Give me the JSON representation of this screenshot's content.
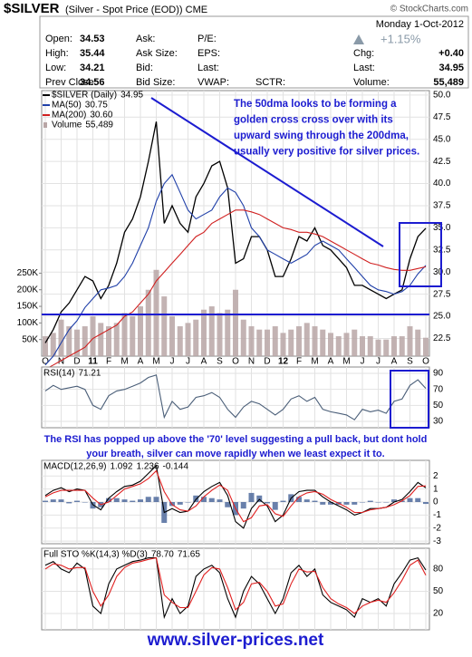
{
  "header": {
    "title": "$SILVER",
    "subtitle": "(Silver - Spot Price (EOD)) CME",
    "credit": "© StockCharts.com"
  },
  "quote": {
    "rows": [
      [
        {
          "label": "Open:",
          "value": "34.53"
        },
        {
          "label": "Ask:"
        },
        {
          "label": "P/E:"
        }
      ],
      [
        {
          "label": "High:",
          "value": "35.44"
        },
        {
          "label": "Ask Size:"
        },
        {
          "label": "EPS:"
        }
      ],
      [
        {
          "label": "Low:",
          "value": "34.21"
        },
        {
          "label": "Bid:"
        },
        {
          "label": "Last:"
        }
      ],
      [
        {
          "label": "Prev Close:",
          "value": "34.56"
        },
        {
          "label": "Bid Size:"
        },
        {
          "label": "VWAP:"
        },
        {
          "label": "SCTR:"
        }
      ]
    ],
    "date": "Monday  1-Oct-2012",
    "change_pct": "+1.15%",
    "right_rows": [
      {
        "label": "Chg:",
        "value": "+0.40"
      },
      {
        "label": "Last:",
        "value": "34.95"
      },
      {
        "label": "Volume:",
        "value": "55,489"
      }
    ]
  },
  "annotations": {
    "price_note": [
      "The 50dma looks to be forming a",
      "golden cross cross over with its",
      "upward swing through the 200dma,",
      "usually very positive for silver prices."
    ],
    "rsi_note": [
      "The RSI has popped up above the '70' level suggesting a pull back, but dont hold",
      "your breath, silver can move rapidly when we least expect it to."
    ]
  },
  "footer": "www.silver-prices.net",
  "chart_data": [
    {
      "type": "line",
      "categories": [
        "O",
        null,
        "N",
        null,
        "D",
        null,
        "11",
        null,
        "F",
        null,
        "M",
        null,
        "A",
        null,
        "M",
        null,
        "J",
        null,
        "J",
        null,
        "A",
        null,
        "S",
        null,
        "O",
        null,
        "N",
        null,
        "D",
        null,
        "12",
        null,
        "F",
        null,
        "M",
        null,
        "A",
        null,
        "M",
        null,
        "J",
        null,
        "J",
        null,
        "A",
        null,
        "S",
        null,
        "O"
      ],
      "ylim": [
        20.5,
        50.5
      ],
      "yticks": [
        22.5,
        {
          "value": 25,
          "label": "25.0"
        },
        27.5,
        {
          "value": 30,
          "label": "30.0"
        },
        32.5,
        {
          "value": 35,
          "label": "35.0"
        },
        37.5,
        {
          "value": 40,
          "label": "40.0"
        },
        42.5,
        {
          "value": 45,
          "label": "45.0"
        },
        47.5,
        {
          "value": 50,
          "label": "50.0"
        }
      ],
      "y2lim": [
        0,
        800000
      ],
      "y2ticks": [
        {
          "value": 50000,
          "label": "50K"
        },
        {
          "value": 100000,
          "label": "100K"
        },
        {
          "value": 150000,
          "label": "150K"
        },
        {
          "value": 200000,
          "label": "200K"
        },
        {
          "value": 250000,
          "label": "250K"
        }
      ],
      "grid": true,
      "series": [
        {
          "name": "$SILVER (Daily)",
          "color": "#000000",
          "values": [
            22.0,
            23.5,
            25.5,
            26.5,
            28.0,
            29.5,
            29.0,
            27.0,
            28.5,
            31.0,
            34.5,
            36.0,
            38.5,
            42.5,
            47.0,
            35.5,
            37.5,
            35.5,
            34.5,
            38.5,
            40.0,
            42.0,
            42.5,
            39.5,
            31.0,
            31.5,
            34.0,
            34.0,
            32.5,
            29.5,
            29.5,
            31.5,
            34.0,
            33.5,
            35.0,
            33.0,
            32.5,
            31.5,
            30.5,
            28.5,
            28.5,
            28.0,
            27.5,
            27.0,
            27.5,
            28.0,
            31.5,
            34.0,
            34.95
          ]
        },
        {
          "name": "MA(50)",
          "color": "#1f3fa8",
          "values": [
            19.5,
            20.5,
            22,
            23.5,
            24.5,
            26,
            27,
            28,
            28.2,
            28.5,
            29.5,
            31,
            33,
            35,
            38,
            40,
            41,
            39,
            37,
            36,
            36.5,
            37,
            38.5,
            39.5,
            39,
            37.5,
            35,
            34,
            32.5,
            32,
            31.5,
            31,
            31.5,
            32,
            33,
            33.5,
            33,
            32.5,
            31.5,
            30.5,
            29.5,
            28.5,
            28,
            27.8,
            27.5,
            27.8,
            28.5,
            29.8,
            30.75
          ]
        },
        {
          "name": "MA(200)",
          "color": "#d02020",
          "last_label": "30.60",
          "values": [
            19,
            19.5,
            20,
            20.5,
            21,
            21.5,
            22.5,
            23,
            23.5,
            24,
            25,
            25.5,
            26.5,
            27.5,
            29,
            30,
            31,
            32,
            33,
            34,
            34.5,
            35.5,
            36,
            36.5,
            37,
            37,
            36.8,
            36.5,
            36,
            35.5,
            35,
            34.8,
            34.5,
            34.5,
            34.3,
            34,
            33.5,
            33,
            32.5,
            32,
            31.5,
            31,
            30.8,
            30.5,
            30.3,
            30.2,
            30.2,
            30.4,
            30.6
          ]
        },
        {
          "name": "Volume",
          "color": "#b9a6a6",
          "axis": "y2",
          "mark": "bar",
          "last_label": "55,489",
          "values": [
            60000,
            70000,
            110000,
            90000,
            80000,
            90000,
            120000,
            100000,
            90000,
            100000,
            130000,
            120000,
            150000,
            200000,
            260000,
            180000,
            120000,
            90000,
            100000,
            110000,
            140000,
            150000,
            130000,
            140000,
            200000,
            110000,
            90000,
            80000,
            80000,
            90000,
            70000,
            80000,
            90000,
            100000,
            90000,
            80000,
            70000,
            60000,
            70000,
            80000,
            60000,
            60000,
            50000,
            50000,
            60000,
            60000,
            90000,
            80000,
            55489
          ]
        }
      ]
    },
    {
      "type": "line",
      "title": "RSI(14)",
      "ylim": [
        22,
        98
      ],
      "yticks": [
        30,
        50,
        70,
        90
      ],
      "grid": true,
      "series": [
        {
          "color": "#4a5e78",
          "values": [
            68,
            75,
            70,
            72,
            74,
            70,
            50,
            45,
            62,
            68,
            70,
            74,
            78,
            85,
            88,
            35,
            55,
            45,
            48,
            60,
            62,
            66,
            60,
            45,
            35,
            48,
            55,
            52,
            45,
            38,
            45,
            58,
            62,
            55,
            60,
            45,
            42,
            40,
            38,
            32,
            45,
            42,
            44,
            40,
            55,
            58,
            75,
            82,
            71.21
          ]
        }
      ]
    },
    {
      "type": "line",
      "title": "MACD(12,26,9)",
      "ylim": [
        -3.2,
        3.2
      ],
      "yticks": [
        2,
        1,
        0,
        -1,
        -2,
        -3
      ],
      "grid": true,
      "series": [
        {
          "color": "#000000",
          "values": [
            0.5,
            0.9,
            1.1,
            0.8,
            1.0,
            0.9,
            -0.2,
            -0.6,
            0.3,
            0.8,
            1.2,
            1.3,
            1.6,
            2.2,
            2.8,
            -0.8,
            -0.5,
            -0.8,
            -0.7,
            0.2,
            0.8,
            1.2,
            1.5,
            0.5,
            -1.5,
            -2.0,
            -0.5,
            0.2,
            -0.3,
            -1.5,
            -1.0,
            0.3,
            0.8,
            0.9,
            0.9,
            0.4,
            0.0,
            -0.3,
            -0.6,
            -1.0,
            -0.8,
            -0.5,
            -0.5,
            -0.4,
            0.0,
            0.2,
            0.8,
            1.5,
            1.092
          ]
        },
        {
          "color": "#e02020",
          "values": [
            0.4,
            0.7,
            0.9,
            0.9,
            0.9,
            0.9,
            0.3,
            -0.2,
            0.0,
            0.5,
            1.0,
            1.2,
            1.4,
            1.8,
            2.4,
            0.8,
            -0.2,
            -0.6,
            -0.7,
            -0.3,
            0.4,
            0.9,
            1.3,
            0.9,
            -0.5,
            -1.5,
            -1.2,
            -0.3,
            -0.2,
            -0.9,
            -1.1,
            -0.3,
            0.4,
            0.7,
            0.8,
            0.6,
            0.2,
            -0.1,
            -0.4,
            -0.8,
            -0.8,
            -0.6,
            -0.5,
            -0.4,
            -0.2,
            0.1,
            0.5,
            1.2,
            1.236
          ]
        },
        {
          "color": "#4f6a9c",
          "mark": "bar",
          "values": [
            0.1,
            0.2,
            0.2,
            -0.1,
            0.1,
            0,
            -0.5,
            -0.4,
            0.3,
            0.3,
            0.2,
            0.1,
            0.2,
            0.4,
            0.4,
            -1.6,
            -0.3,
            -0.2,
            0,
            0.5,
            0.4,
            0.3,
            0.2,
            -0.4,
            -1.0,
            -0.5,
            0.7,
            0.5,
            -0.1,
            -0.6,
            0.1,
            0.6,
            0.4,
            0.2,
            0.1,
            -0.2,
            -0.2,
            -0.2,
            -0.2,
            -0.2,
            0,
            0.1,
            0,
            0,
            0.2,
            0.1,
            0.3,
            0.3,
            -0.144
          ]
        }
      ]
    },
    {
      "type": "line",
      "title": "Full STO %K(14,3) %D(3)",
      "ylim": [
        -2,
        108
      ],
      "yticks": [
        20,
        50,
        80
      ],
      "grid": true,
      "series": [
        {
          "color": "#000000",
          "last_label": "78.70",
          "values": [
            85,
            90,
            80,
            75,
            88,
            80,
            30,
            20,
            60,
            80,
            85,
            90,
            92,
            95,
            95,
            15,
            40,
            20,
            30,
            70,
            80,
            85,
            75,
            40,
            15,
            50,
            70,
            60,
            40,
            20,
            40,
            75,
            85,
            70,
            80,
            45,
            35,
            30,
            25,
            15,
            40,
            35,
            40,
            30,
            60,
            75,
            92,
            95,
            78.7
          ]
        },
        {
          "color": "#e02020",
          "values": [
            80,
            87,
            85,
            80,
            82,
            82,
            50,
            30,
            45,
            70,
            82,
            88,
            90,
            93,
            95,
            45,
            35,
            28,
            28,
            50,
            72,
            82,
            80,
            55,
            25,
            35,
            60,
            62,
            50,
            30,
            33,
            60,
            80,
            76,
            77,
            55,
            40,
            33,
            28,
            20,
            30,
            35,
            38,
            35,
            48,
            65,
            85,
            92,
            71.65
          ]
        }
      ]
    }
  ]
}
